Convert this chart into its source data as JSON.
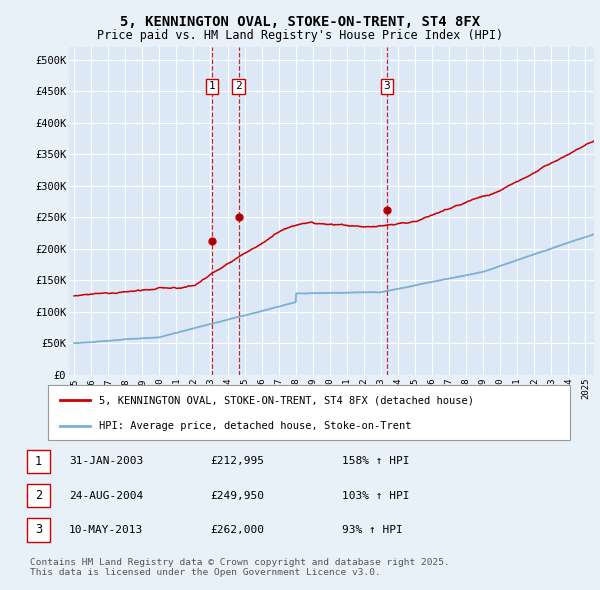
{
  "title": "5, KENNINGTON OVAL, STOKE-ON-TRENT, ST4 8FX",
  "subtitle": "Price paid vs. HM Land Registry's House Price Index (HPI)",
  "legend_line1": "5, KENNINGTON OVAL, STOKE-ON-TRENT, ST4 8FX (detached house)",
  "legend_line2": "HPI: Average price, detached house, Stoke-on-Trent",
  "footnote": "Contains HM Land Registry data © Crown copyright and database right 2025.\nThis data is licensed under the Open Government Licence v3.0.",
  "sales": [
    {
      "num": 1,
      "date": "31-JAN-2003",
      "price": 212995,
      "hpi_pct": "158% ↑ HPI",
      "x_year": 2003.08
    },
    {
      "num": 2,
      "date": "24-AUG-2004",
      "price": 249950,
      "hpi_pct": "103% ↑ HPI",
      "x_year": 2004.65
    },
    {
      "num": 3,
      "date": "10-MAY-2013",
      "price": 262000,
      "hpi_pct": "93% ↑ HPI",
      "x_year": 2013.36
    }
  ],
  "background_color": "#e8f0f8",
  "plot_bg_color": "#dce8f5",
  "red_line_color": "#cc0000",
  "blue_line_color": "#7ab0d4",
  "vline_color": "#cc0000",
  "vline_shade": "#ddeeff",
  "grid_color": "#ffffff",
  "ylim": [
    0,
    520000
  ],
  "xlim_start": 1994.7,
  "xlim_end": 2025.5,
  "yticks": [
    0,
    50000,
    100000,
    150000,
    200000,
    250000,
    300000,
    350000,
    400000,
    450000,
    500000
  ],
  "ytick_labels": [
    "£0",
    "£50K",
    "£100K",
    "£150K",
    "£200K",
    "£250K",
    "£300K",
    "£350K",
    "£400K",
    "£450K",
    "£500K"
  ],
  "xtick_labels": [
    "1995",
    "1996",
    "1997",
    "1998",
    "1999",
    "2000",
    "2001",
    "2002",
    "2003",
    "2004",
    "2005",
    "2006",
    "2007",
    "2008",
    "2009",
    "2010",
    "2011",
    "2012",
    "2013",
    "2014",
    "2015",
    "2016",
    "2017",
    "2018",
    "2019",
    "2020",
    "2021",
    "2022",
    "2023",
    "2024",
    "2025"
  ],
  "xticks": [
    1995,
    1996,
    1997,
    1998,
    1999,
    2000,
    2001,
    2002,
    2003,
    2004,
    2005,
    2006,
    2007,
    2008,
    2009,
    2010,
    2011,
    2012,
    2013,
    2014,
    2015,
    2016,
    2017,
    2018,
    2019,
    2020,
    2021,
    2022,
    2023,
    2024,
    2025
  ]
}
